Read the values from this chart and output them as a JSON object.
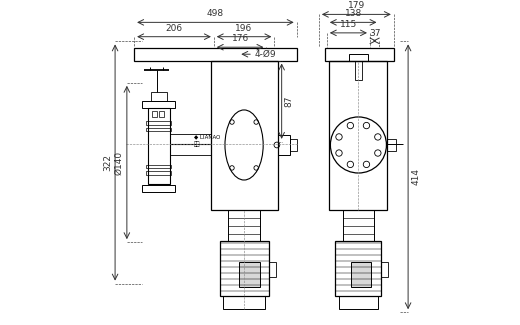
{
  "bg_color": "#ffffff",
  "line_color": "#000000",
  "dim_color": "#333333",
  "dim_fontsize": 6.5,
  "label_322": "322",
  "label_140": "Ø140",
  "label_87": "87",
  "label_4d9": "4-Ø9",
  "label_206": "206",
  "label_176": "176",
  "label_196": "196",
  "label_498": "498",
  "label_414": "414",
  "label_115": "115",
  "label_37": "37",
  "label_138": "138",
  "label_179": "179",
  "logo1": "◆ LIANAO",
  "logo2": "力高"
}
